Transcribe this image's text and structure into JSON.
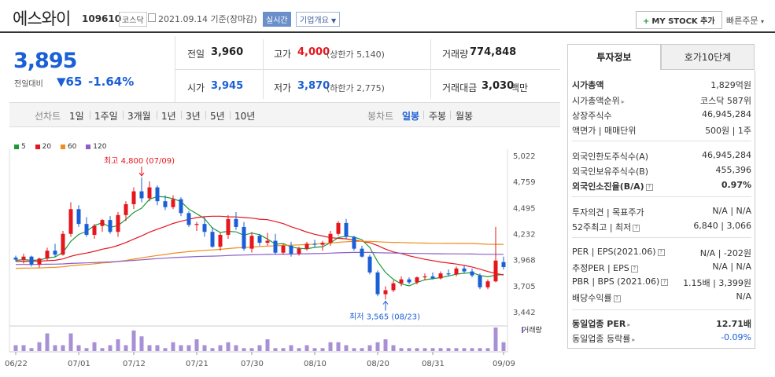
{
  "header": {
    "name": "에스와이",
    "code": "109610",
    "market": "코스닥",
    "date": "2021.09.14 기준(장마감)",
    "realtime": "실시간",
    "corp_info": "기업개요",
    "my_stock": "MY STOCK 추가",
    "quick_order": "빠른주문"
  },
  "price": {
    "current": "3,895",
    "prev_label": "전일대비",
    "change": "▼65",
    "change_rate": "-1.64%"
  },
  "stats": {
    "prev": {
      "label": "전일",
      "value": "3,960"
    },
    "high": {
      "label": "고가",
      "value": "4,000",
      "sub": "(상한가 5,140)"
    },
    "volume": {
      "label": "거래량",
      "value": "774,848"
    },
    "open": {
      "label": "시가",
      "value": "3,945"
    },
    "low": {
      "label": "저가",
      "value": "3,870",
      "sub": "(하한가 2,775)"
    },
    "amount": {
      "label": "거래대금",
      "value": "3,030",
      "unit": "백만"
    }
  },
  "period_bar": {
    "line_label": "선차트",
    "line_items": [
      "1일",
      "1주일",
      "3개월",
      "1년",
      "3년",
      "5년",
      "10년"
    ],
    "candle_label": "봉차트",
    "candle_items": [
      "일봉",
      "주봉",
      "월봉"
    ],
    "candle_selected": "일봉"
  },
  "legend": [
    {
      "label": "5",
      "color": "#1d9a38"
    },
    {
      "label": "20",
      "color": "#e5161e"
    },
    {
      "label": "60",
      "color": "#f08c1e"
    },
    {
      "label": "120",
      "color": "#8a5fc9"
    }
  ],
  "chart_data": {
    "type": "candlestick",
    "y_ticks": [
      "5,022",
      "4,759",
      "4,495",
      "4,232",
      "3,968",
      "3,705",
      "3,442"
    ],
    "ylim": [
      3442,
      5022
    ],
    "x_ticks": [
      "06/22",
      "07/01",
      "07/12",
      "07/21",
      "07/30",
      "08/10",
      "08/20",
      "08/31",
      "09/09"
    ],
    "annotations": {
      "high": "최고 4,800 (07/09)",
      "low": "최저 3,565 (08/23)"
    },
    "volume_label": "거래량",
    "candles": [
      [
        3990,
        4010,
        3950,
        3970
      ],
      [
        3970,
        4030,
        3930,
        4000
      ],
      [
        4000,
        4010,
        3900,
        3920
      ],
      [
        3920,
        3990,
        3890,
        3980
      ],
      [
        3980,
        4090,
        3960,
        4060
      ],
      [
        4060,
        4130,
        4000,
        4020
      ],
      [
        4020,
        4260,
        4010,
        4230
      ],
      [
        4230,
        4550,
        4200,
        4480
      ],
      [
        4480,
        4520,
        4300,
        4330
      ],
      [
        4330,
        4400,
        4200,
        4220
      ],
      [
        4220,
        4330,
        4180,
        4310
      ],
      [
        4310,
        4380,
        4250,
        4370
      ],
      [
        4370,
        4410,
        4230,
        4250
      ],
      [
        4250,
        4450,
        4200,
        4420
      ],
      [
        4420,
        4560,
        4360,
        4530
      ],
      [
        4530,
        4700,
        4480,
        4660
      ],
      [
        4660,
        4800,
        4550,
        4590
      ],
      [
        4590,
        4760,
        4560,
        4700
      ],
      [
        4700,
        4720,
        4520,
        4560
      ],
      [
        4560,
        4620,
        4470,
        4500
      ],
      [
        4500,
        4620,
        4480,
        4580
      ],
      [
        4580,
        4600,
        4410,
        4440
      ],
      [
        4440,
        4460,
        4300,
        4320
      ],
      [
        4320,
        4350,
        4260,
        4330
      ],
      [
        4330,
        4400,
        4200,
        4250
      ],
      [
        4250,
        4300,
        4090,
        4100
      ],
      [
        4100,
        4240,
        4060,
        4220
      ],
      [
        4220,
        4420,
        4180,
        4380
      ],
      [
        4380,
        4450,
        4270,
        4300
      ],
      [
        4300,
        4350,
        4060,
        4080
      ],
      [
        4080,
        4250,
        4040,
        4210
      ],
      [
        4210,
        4230,
        4110,
        4140
      ],
      [
        4140,
        4240,
        4110,
        4160
      ],
      [
        4160,
        4230,
        4020,
        4040
      ],
      [
        4040,
        4130,
        4020,
        4110
      ],
      [
        4110,
        4150,
        4000,
        4030
      ],
      [
        4030,
        4100,
        4010,
        4080
      ],
      [
        4080,
        4150,
        4060,
        4130
      ],
      [
        4130,
        4170,
        4090,
        4120
      ],
      [
        4120,
        4160,
        4060,
        4140
      ],
      [
        4140,
        4260,
        4110,
        4230
      ],
      [
        4230,
        4360,
        4210,
        4340
      ],
      [
        4340,
        4380,
        4180,
        4200
      ],
      [
        4200,
        4210,
        4060,
        4080
      ],
      [
        4080,
        4110,
        3990,
        4000
      ],
      [
        4000,
        4020,
        3820,
        3840
      ],
      [
        3840,
        3860,
        3600,
        3620
      ],
      [
        3620,
        3700,
        3565,
        3660
      ],
      [
        3660,
        3760,
        3640,
        3730
      ],
      [
        3730,
        3800,
        3700,
        3770
      ],
      [
        3770,
        3790,
        3720,
        3740
      ],
      [
        3740,
        3800,
        3720,
        3790
      ],
      [
        3790,
        3830,
        3760,
        3800
      ],
      [
        3800,
        3840,
        3770,
        3780
      ],
      [
        3780,
        3850,
        3770,
        3830
      ],
      [
        3830,
        3870,
        3800,
        3820
      ],
      [
        3820,
        3900,
        3800,
        3880
      ],
      [
        3880,
        3910,
        3830,
        3850
      ],
      [
        3850,
        3880,
        3790,
        3810
      ],
      [
        3810,
        3830,
        3670,
        3690
      ],
      [
        3690,
        3770,
        3670,
        3750
      ],
      [
        3750,
        4300,
        3740,
        3960
      ],
      [
        3945,
        4000,
        3870,
        3895
      ]
    ],
    "ma5_start": 3960,
    "ma20_start": 3950,
    "ma60_start": 3880,
    "ma120_start": 3920,
    "volumes": [
      2,
      2,
      1,
      3,
      6,
      2,
      2,
      6,
      2,
      1,
      3,
      1,
      2,
      4,
      2,
      7,
      5,
      2,
      2,
      1,
      3,
      2,
      2,
      4,
      2,
      1,
      2,
      3,
      2,
      1,
      1,
      2,
      4,
      1,
      1,
      2,
      1,
      2,
      1,
      1,
      3,
      3,
      2,
      1,
      1,
      2,
      3,
      4,
      2,
      1,
      1,
      1,
      1,
      1,
      1,
      1,
      1,
      1,
      1,
      1,
      1,
      8,
      3
    ]
  },
  "right_panel": {
    "tabs": [
      "투자정보",
      "호가10단계"
    ],
    "rows": [
      {
        "label": "시가총액",
        "value": "1,829억원",
        "bold_label": true
      },
      {
        "label": "시가총액순위",
        "value": "코스닥 587위",
        "arrow": true
      },
      {
        "label": "상장주식수",
        "value": "46,945,284"
      },
      {
        "label": "액면가 | 매매단위",
        "value": "500원 | 1주"
      },
      {
        "label": "외국인한도주식수(A)",
        "value": "46,945,284"
      },
      {
        "label": "외국인보유주식수(B)",
        "value": "455,396"
      },
      {
        "label": "외국인소진율(B/A)",
        "value": "0.97%",
        "bold_label": true,
        "bold_value": true,
        "q": true
      },
      {
        "label": "투자의견 | 목표주가",
        "value": "N/A | N/A"
      },
      {
        "label": "52주최고 | 최저",
        "value": "6,840 | 3,066",
        "q": true
      },
      {
        "label": "PER | EPS(2021.06)",
        "value": "N/A | -202원",
        "q": true
      },
      {
        "label": "추정PER | EPS",
        "value": "N/A | N/A",
        "q": true
      },
      {
        "label": "PBR | BPS (2021.06)",
        "value": "1.15배 | 3,399원",
        "q": true
      },
      {
        "label": "배당수익률",
        "value": "N/A",
        "q": true
      },
      {
        "label": "동일업종 PER",
        "value": "12.71배",
        "bold_label": true,
        "bold_value": true,
        "arrow": true
      },
      {
        "label": "동일업종 등락률",
        "value": "-0.09%",
        "arrow": true,
        "blue_value": true
      }
    ]
  }
}
